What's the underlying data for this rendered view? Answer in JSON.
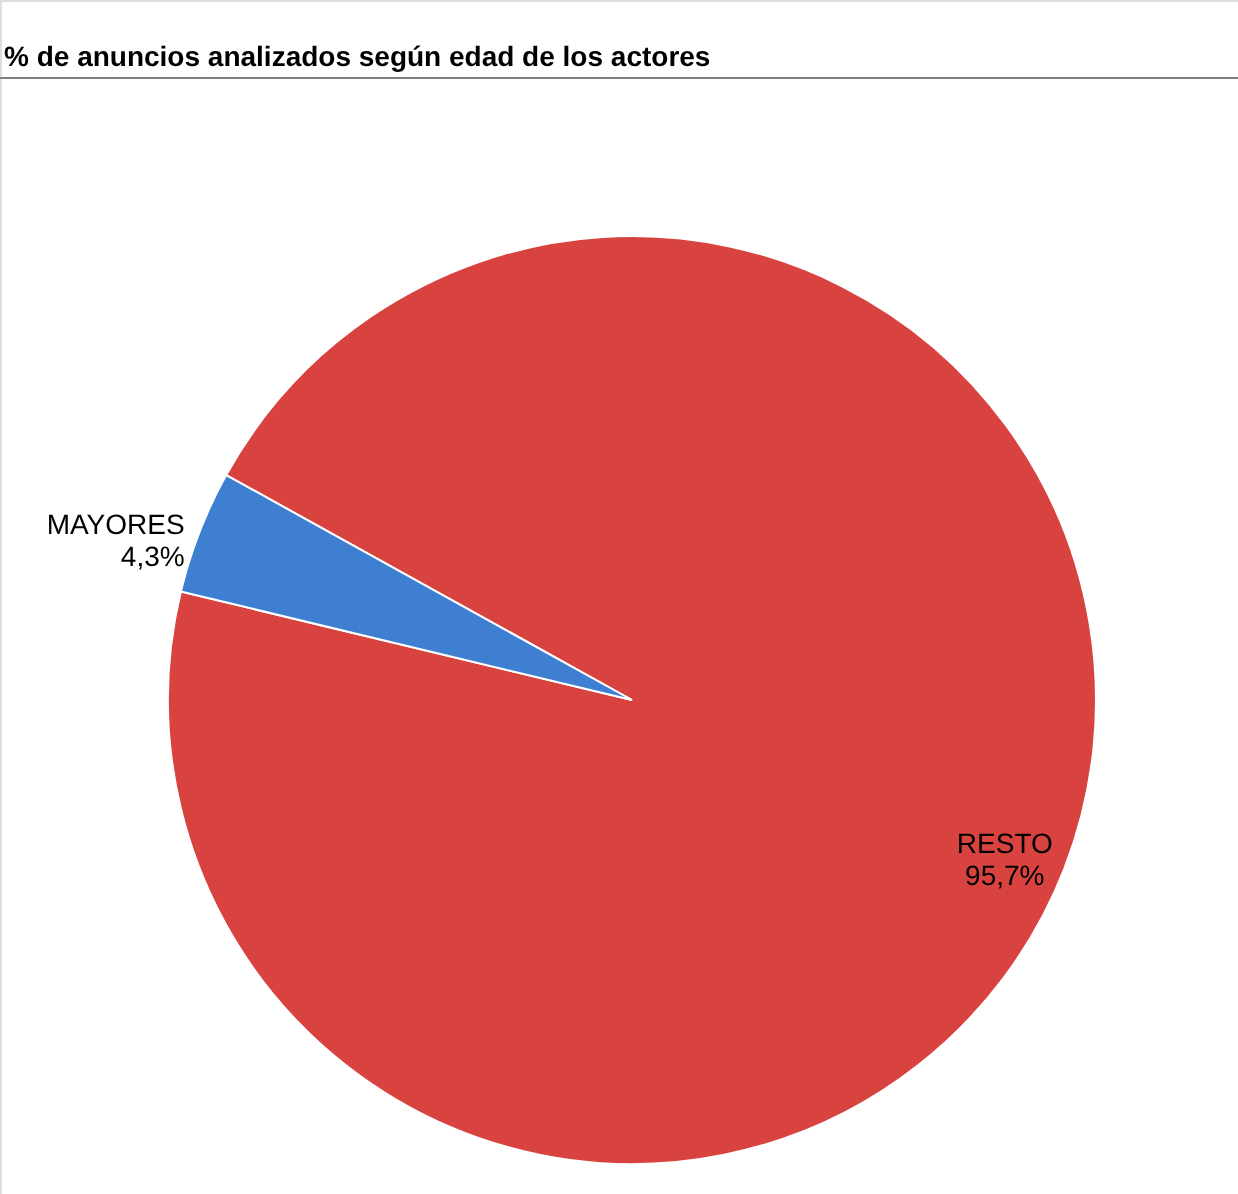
{
  "chart_data": {
    "type": "pie",
    "title": "% de anuncios analizados según edad de los actores",
    "categories": [
      "RESTO",
      "MAYORES"
    ],
    "values": [
      95.7,
      4.3
    ],
    "colors": [
      "#d8433f",
      "#3f7fd2"
    ],
    "value_labels": [
      "95,7%",
      "4,3%"
    ]
  }
}
